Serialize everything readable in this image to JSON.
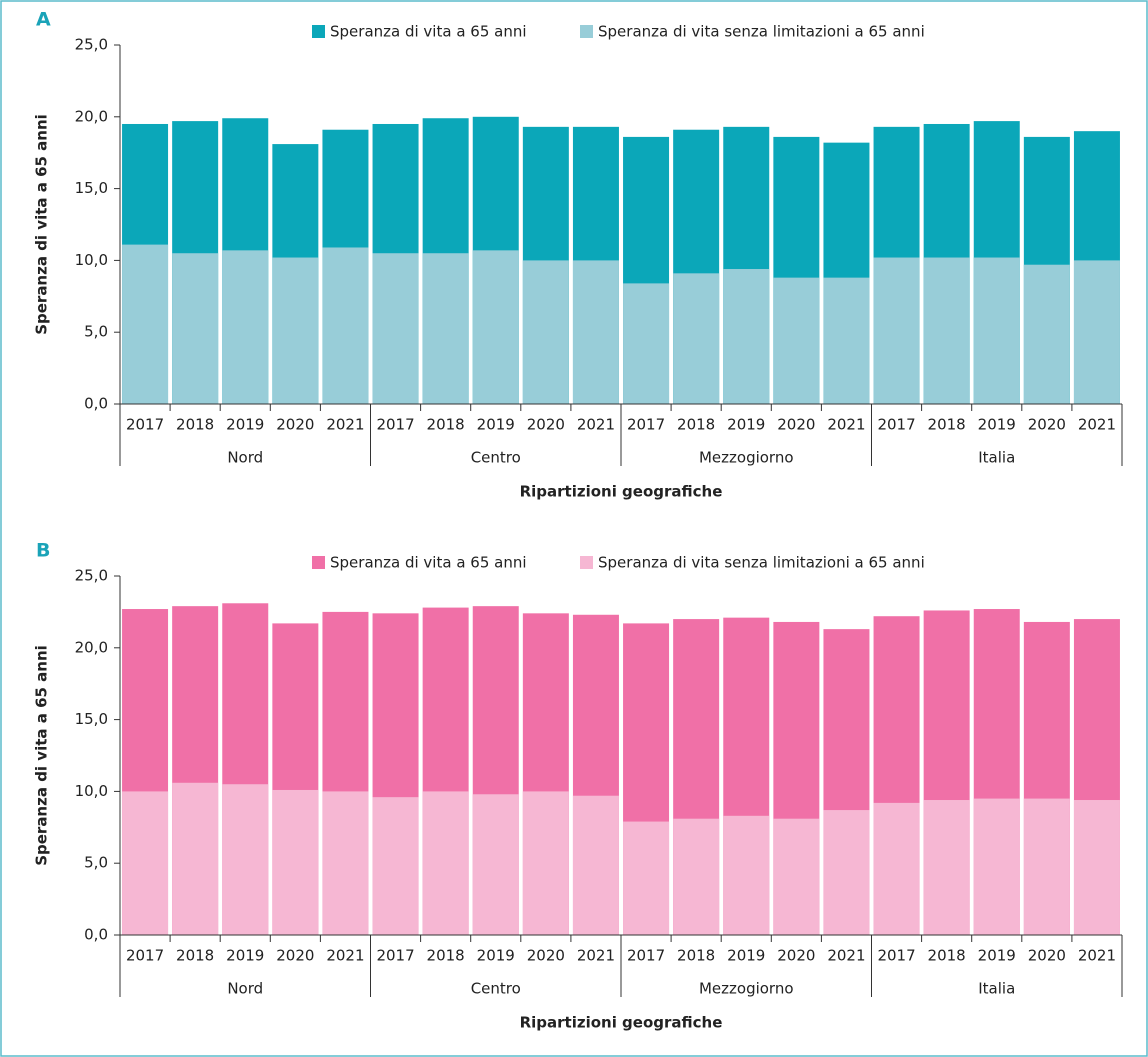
{
  "chart_data": [
    {
      "type": "bar",
      "panel": "A",
      "ylabel": "Speranza di vita a 65 anni",
      "xlabel": "Ripartizioni geografiche",
      "categories": [
        "2017",
        "2018",
        "2019",
        "2020",
        "2021",
        "2017",
        "2018",
        "2019",
        "2020",
        "2021",
        "2017",
        "2018",
        "2019",
        "2020",
        "2021",
        "2017",
        "2018",
        "2019",
        "2020",
        "2021"
      ],
      "groups": [
        "Nord",
        "Centro",
        "Mezzogiorno",
        "Italia"
      ],
      "series": [
        {
          "name": "Speranza di vita a 65 anni",
          "color": "#0ba7b9",
          "values": [
            19.5,
            19.7,
            19.9,
            18.1,
            19.1,
            19.5,
            19.9,
            20.0,
            19.3,
            19.3,
            18.6,
            19.1,
            19.3,
            18.6,
            18.2,
            19.3,
            19.5,
            19.7,
            18.6,
            19.0
          ]
        },
        {
          "name": "Speranza di vita senza limitazioni a 65 anni",
          "color": "#98cdd8",
          "values": [
            11.1,
            10.5,
            10.7,
            10.2,
            10.9,
            10.5,
            10.5,
            10.7,
            10.0,
            10.0,
            8.4,
            9.1,
            9.4,
            8.8,
            8.8,
            10.2,
            10.2,
            10.2,
            9.7,
            10.0
          ]
        }
      ],
      "ylim": [
        0,
        25
      ],
      "yticks": [
        {
          "value": 0,
          "label": "0,0"
        },
        {
          "value": 5,
          "label": "5,0"
        },
        {
          "value": 10,
          "label": "10,0"
        },
        {
          "value": 15,
          "label": "15,0"
        },
        {
          "value": 20,
          "label": "20,0"
        },
        {
          "value": 25,
          "label": "25,0"
        }
      ]
    },
    {
      "type": "bar",
      "panel": "B",
      "ylabel": "Speranza di vita a 65 anni",
      "xlabel": "Ripartizioni geografiche",
      "categories": [
        "2017",
        "2018",
        "2019",
        "2020",
        "2021",
        "2017",
        "2018",
        "2019",
        "2020",
        "2021",
        "2017",
        "2018",
        "2019",
        "2020",
        "2021",
        "2017",
        "2018",
        "2019",
        "2020",
        "2021"
      ],
      "groups": [
        "Nord",
        "Centro",
        "Mezzogiorno",
        "Italia"
      ],
      "series": [
        {
          "name": "Speranza di vita a 65 anni",
          "color": "#f070a7",
          "values": [
            22.7,
            22.9,
            23.1,
            21.7,
            22.5,
            22.4,
            22.8,
            22.9,
            22.4,
            22.3,
            21.7,
            22.0,
            22.1,
            21.8,
            21.3,
            22.2,
            22.6,
            22.7,
            21.8,
            22.0
          ]
        },
        {
          "name": "Speranza di vita senza limitazioni a 65 anni",
          "color": "#f6b7d3",
          "values": [
            10.0,
            10.6,
            10.5,
            10.1,
            10.0,
            9.6,
            10.0,
            9.8,
            10.0,
            9.7,
            7.9,
            8.1,
            8.3,
            8.1,
            8.7,
            9.2,
            9.4,
            9.5,
            9.5,
            9.4
          ]
        }
      ],
      "ylim": [
        0,
        25
      ],
      "yticks": [
        {
          "value": 0,
          "label": "0,0"
        },
        {
          "value": 5,
          "label": "5,0"
        },
        {
          "value": 10,
          "label": "10,0"
        },
        {
          "value": 15,
          "label": "15,0"
        },
        {
          "value": 20,
          "label": "20,0"
        },
        {
          "value": 25,
          "label": "25,0"
        }
      ]
    }
  ]
}
